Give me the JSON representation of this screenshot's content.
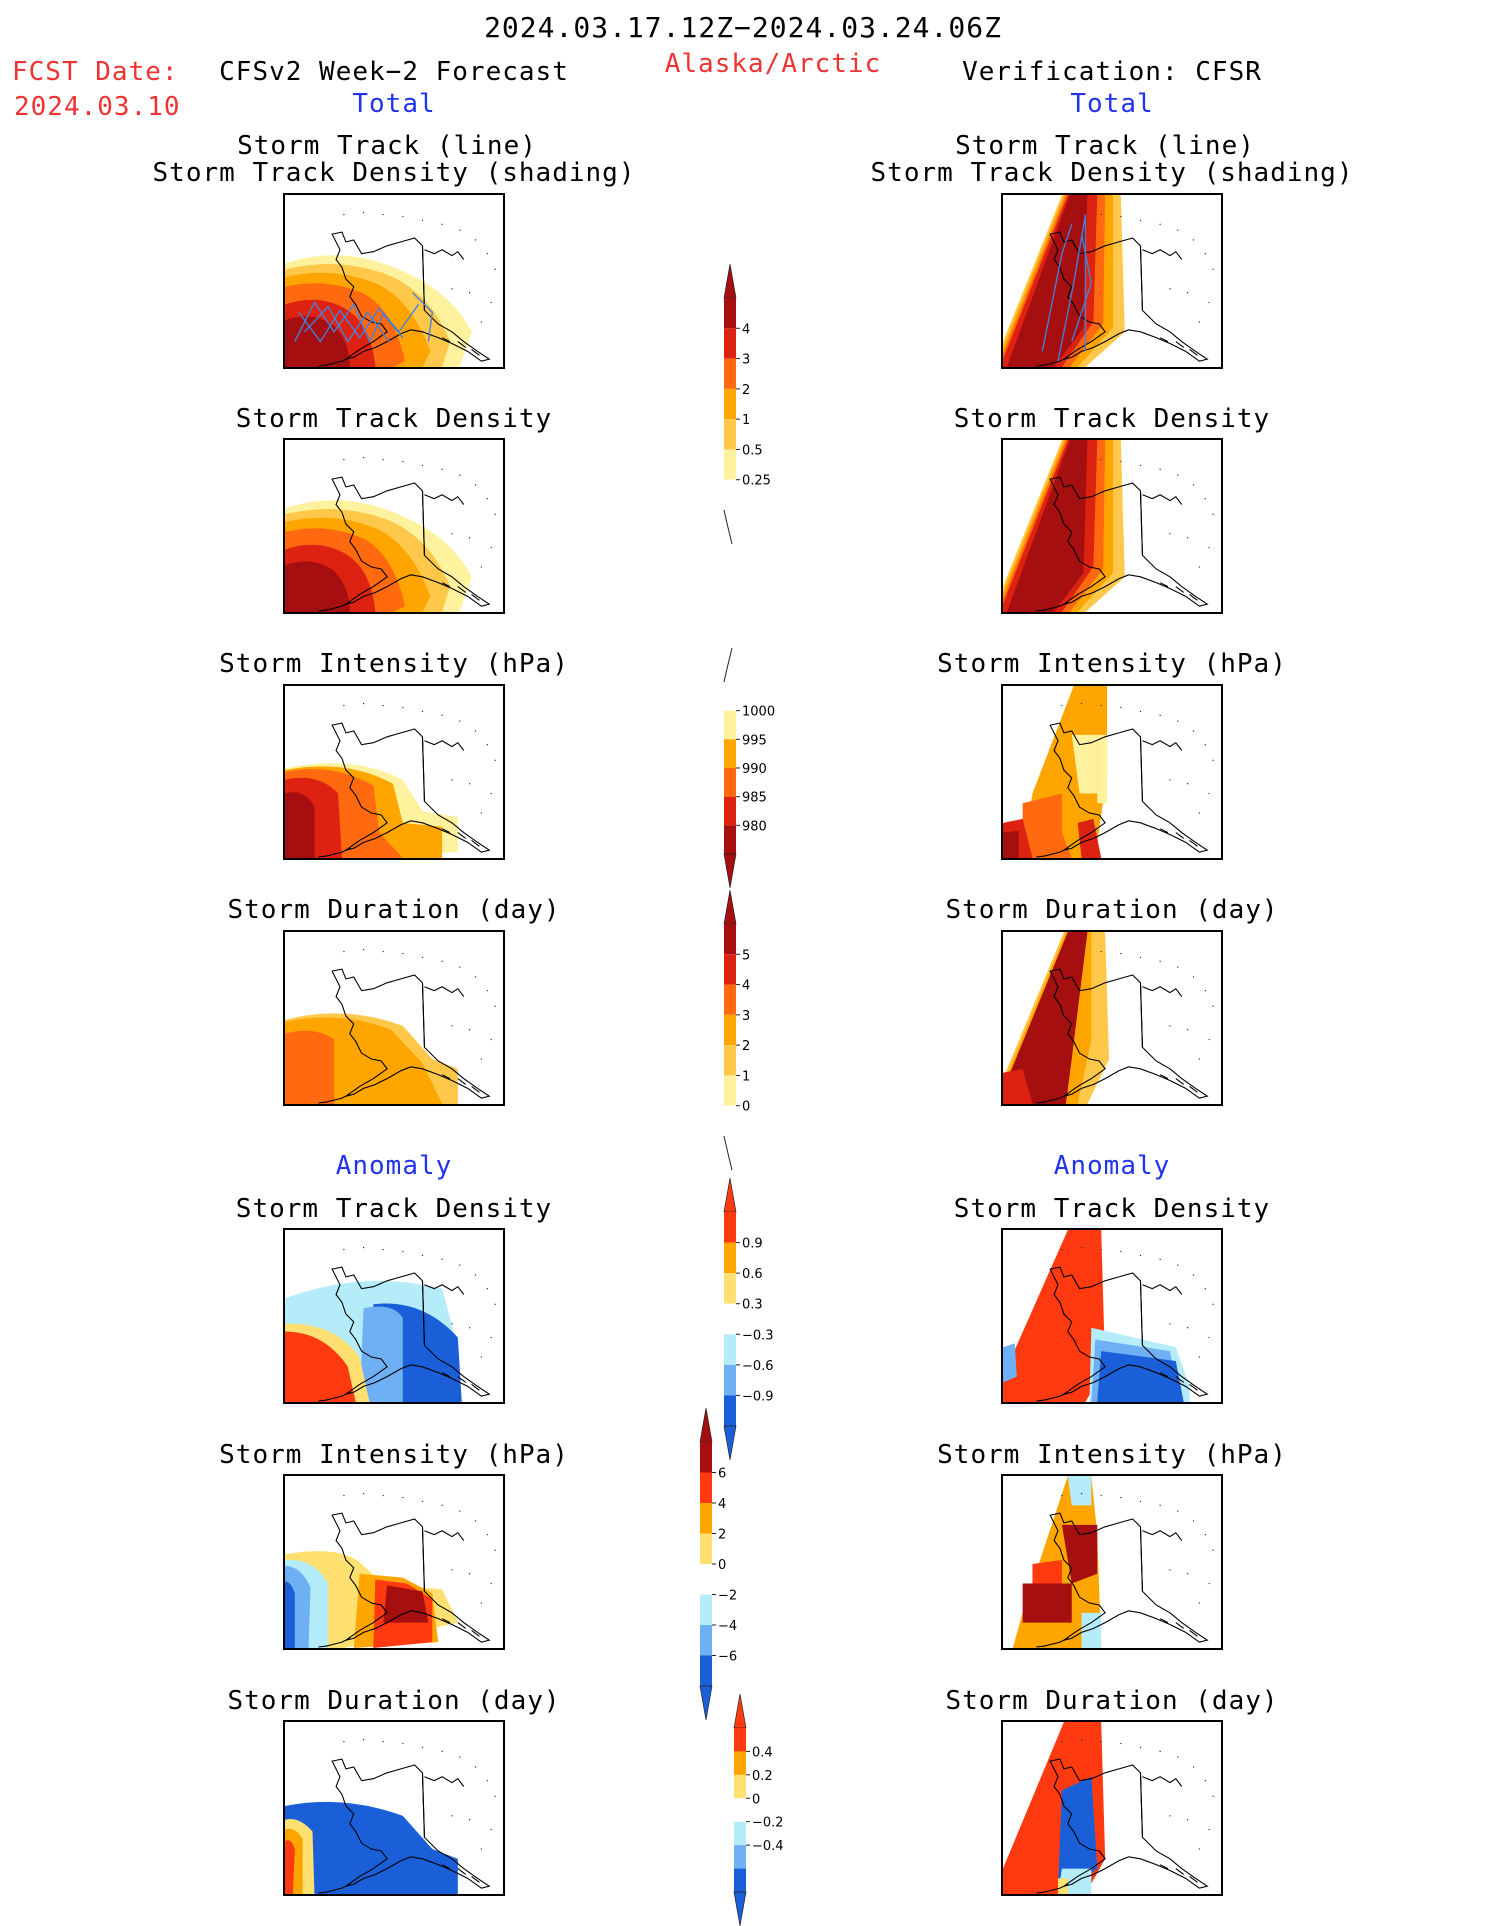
{
  "header": {
    "date_range": "2024.03.17.12Z−2024.03.24.06Z",
    "region": "Alaska/Arctic",
    "fcst_label": "FCST Date:",
    "fcst_date": "2024.03.10",
    "left_title": "CFSv2 Week−2 Forecast",
    "right_title": "Verification: CFSR",
    "total_label": "Total",
    "anomaly_label": "Anomaly"
  },
  "panel_titles": {
    "track_line": "Storm Track (line)",
    "track_shading": "Storm Track Density (shading)",
    "density": "Storm Track Density",
    "intensity": "Storm Intensity (hPa)",
    "duration": "Storm Duration (day)"
  },
  "colorbars": {
    "density_total": {
      "labels": [
        "4",
        "3",
        "2",
        "1",
        "0.5",
        "0.25"
      ],
      "colors": [
        "#a50f0f",
        "#dd2211",
        "#ff6a10",
        "#ffa500",
        "#ffc84a",
        "#fff29e",
        "#ffffff"
      ]
    },
    "intensity_total": {
      "labels": [
        "1000",
        "995",
        "990",
        "985",
        "980"
      ],
      "colors": [
        "#ffffff",
        "#fff29e",
        "#ffa500",
        "#ff6a10",
        "#dd2211",
        "#a50f0f"
      ]
    },
    "duration_total": {
      "labels": [
        "5",
        "4",
        "3",
        "2",
        "1",
        "0"
      ],
      "colors": [
        "#a50f0f",
        "#dd2211",
        "#ff6a10",
        "#ffa500",
        "#ffc84a",
        "#fff29e",
        "#ffffff"
      ]
    },
    "density_anom": {
      "labels": [
        "0.9",
        "0.6",
        "0.3",
        "−0.3",
        "−0.6",
        "−0.9"
      ],
      "colors": [
        "#ff3a10",
        "#ffa500",
        "#ffe070",
        "#ffffff",
        "#b5ecfa",
        "#6fb0f5",
        "#1a5fd8"
      ]
    },
    "intensity_anom": {
      "labels": [
        "6",
        "4",
        "2",
        "0",
        "−2",
        "−4",
        "−6"
      ],
      "colors": [
        "#a50f0f",
        "#ff3a10",
        "#ffa500",
        "#ffe070",
        "#ffffff",
        "#b5ecfa",
        "#6fb0f5",
        "#1a5fd8"
      ]
    },
    "duration_anom": {
      "labels": [
        "0.4",
        "0.2",
        "0",
        "−0.2",
        "−0.4"
      ],
      "colors": [
        "#ff3a10",
        "#ffa500",
        "#ffe070",
        "#ffffff",
        "#b5ecfa",
        "#6fb0f5",
        "#1a5fd8"
      ]
    }
  }
}
